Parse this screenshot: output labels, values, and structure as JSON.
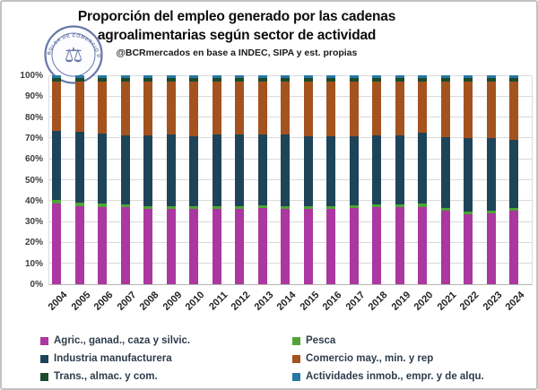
{
  "header": {
    "title_line1": "Proporción del empleo generado por las cadenas",
    "title_line2": "agroalimentarias según sector de actividad",
    "subtitle": "@BCRmercados en base a INDEC, SIPA y est. propias",
    "logo": {
      "seal_text": "BOLSA DE COMERCIO DE ROSARIO",
      "color": "#5b6ca2",
      "symbol": "scales-caduceus"
    }
  },
  "chart_data": {
    "type": "bar",
    "stacked": true,
    "title": "Proporción del empleo generado por las cadenas agroalimentarias según sector de actividad",
    "subtitle": "@BCRmercados en base a INDEC, SIPA y est. propias",
    "categories": [
      "2004",
      "2005",
      "2006",
      "2007",
      "2008",
      "2009",
      "2010",
      "2011",
      "2012",
      "2013",
      "2014",
      "2015",
      "2016",
      "2017",
      "2018",
      "2019",
      "2020",
      "2021",
      "2022",
      "2023",
      "2024"
    ],
    "series": [
      {
        "name": "Agric., ganad., caza y silvic.",
        "color": "#ab37a0",
        "values": [
          38.5,
          37.5,
          37.0,
          37.0,
          36.2,
          36.2,
          36.0,
          36.2,
          36.2,
          36.6,
          36.2,
          36.2,
          36.2,
          36.6,
          37.0,
          37.0,
          37.1,
          35.1,
          33.4,
          33.9,
          35.1
        ]
      },
      {
        "name": "Pesca",
        "color": "#4ea436",
        "values": [
          2.0,
          1.5,
          1.5,
          1.3,
          1.3,
          1.3,
          1.3,
          1.2,
          1.2,
          1.2,
          1.2,
          1.2,
          1.2,
          1.2,
          1.2,
          1.2,
          1.4,
          1.2,
          1.4,
          1.5,
          1.4
        ]
      },
      {
        "name": "Industria manufacturera",
        "color": "#1e4459",
        "values": [
          33.0,
          33.9,
          33.6,
          33.1,
          33.8,
          34.1,
          33.7,
          34.1,
          34.1,
          33.7,
          34.1,
          33.6,
          33.6,
          33.2,
          33.0,
          33.1,
          34.2,
          34.2,
          35.0,
          34.4,
          32.6
        ]
      },
      {
        "name": "Comercio may., min. y rep",
        "color": "#a4531f",
        "values": [
          23.5,
          24.1,
          24.9,
          25.6,
          25.7,
          25.4,
          26.0,
          25.5,
          25.5,
          25.5,
          25.5,
          26.0,
          26.0,
          26.0,
          25.8,
          25.7,
          24.3,
          26.5,
          27.2,
          27.2,
          27.9
        ]
      },
      {
        "name": "Trans., almac. y com.",
        "color": "#1b4a2e",
        "values": [
          1.6,
          1.6,
          1.6,
          1.6,
          1.6,
          1.6,
          1.6,
          1.6,
          1.6,
          1.6,
          1.6,
          1.6,
          1.6,
          1.6,
          1.6,
          1.6,
          1.6,
          1.6,
          1.6,
          1.6,
          1.6
        ]
      },
      {
        "name": "Actividades inmob., empr. y de alqu.",
        "color": "#2878a3",
        "values": [
          1.4,
          1.4,
          1.4,
          1.4,
          1.4,
          1.4,
          1.4,
          1.4,
          1.4,
          1.4,
          1.4,
          1.4,
          1.4,
          1.4,
          1.4,
          1.4,
          1.4,
          1.4,
          1.4,
          1.4,
          1.4
        ]
      }
    ],
    "xlabel": "",
    "ylabel": "",
    "ylim": [
      0,
      100
    ],
    "ytick_step": 10,
    "ytick_format": "percent",
    "grid": true,
    "legend_position": "bottom"
  },
  "legend": {
    "items": [
      {
        "label": "Agric., ganad., caza y silvic.",
        "color": "#ab37a0"
      },
      {
        "label": "Industria manufacturera",
        "color": "#1e4459"
      },
      {
        "label": "Trans., almac. y com.",
        "color": "#1b4a2e"
      },
      {
        "label": "Pesca",
        "color": "#4ea436"
      },
      {
        "label": "Comercio may., min. y rep",
        "color": "#a4531f"
      },
      {
        "label": "Actividades inmob., empr. y de alqu.",
        "color": "#2878a3"
      }
    ]
  }
}
